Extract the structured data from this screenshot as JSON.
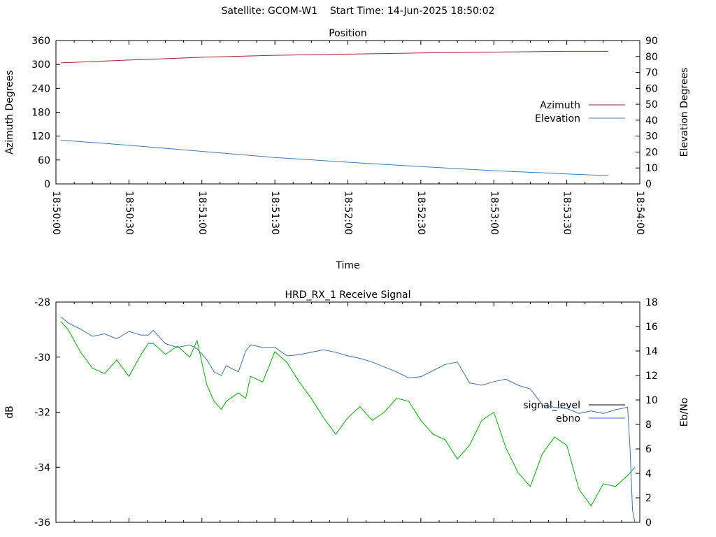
{
  "header": {
    "satellite": "Satellite: GCOM-W1",
    "start_time": "Start Time: 14-Jun-2025 18:50:02"
  },
  "colors": {
    "azimuth": "#a0242c",
    "elevation": "#3f7ab4",
    "signal_level_line": "#000000",
    "signal_level_trace": "#00b000",
    "ebno": "#3f6fb0"
  },
  "chart_data": [
    {
      "type": "line",
      "title": "Position",
      "xlabel": "Time",
      "ylabel": "Azimuth Degrees",
      "y2label": "Elevation Degrees",
      "xticks": [
        "18:50:00",
        "18:50:30",
        "18:51:00",
        "18:51:30",
        "18:52:00",
        "18:52:30",
        "18:53:00",
        "18:53:30",
        "18:54:00"
      ],
      "xlim_seconds": [
        0,
        240
      ],
      "ylim": [
        0,
        360
      ],
      "y2lim": [
        0,
        90
      ],
      "yticks": [
        0,
        60,
        120,
        180,
        240,
        300,
        360
      ],
      "y2ticks": [
        0,
        10,
        20,
        30,
        40,
        50,
        60,
        70,
        80,
        90
      ],
      "legend_position": "right",
      "series": [
        {
          "name": "Azimuth",
          "axis": "y",
          "t": [
            "18:50:02",
            "18:50:30",
            "18:51:00",
            "18:51:30",
            "18:52:00",
            "18:52:30",
            "18:53:00",
            "18:53:30",
            "18:53:47"
          ],
          "values": [
            304,
            311,
            318,
            323,
            326,
            329,
            331,
            333,
            333
          ]
        },
        {
          "name": "Elevation",
          "axis": "y2",
          "t": [
            "18:50:02",
            "18:50:30",
            "18:51:00",
            "18:51:30",
            "18:52:00",
            "18:52:30",
            "18:53:00",
            "18:53:30",
            "18:53:47"
          ],
          "values": [
            27.5,
            24.3,
            20.4,
            16.6,
            13.6,
            10.9,
            8.3,
            6.3,
            5.2
          ]
        }
      ]
    },
    {
      "type": "line",
      "title": "HRD_RX_1 Receive Signal",
      "ylabel": "dB",
      "y2label": "Eb/No",
      "ylim": [
        -36,
        -28
      ],
      "y2lim": [
        0,
        18
      ],
      "yticks": [
        -28,
        -30,
        -32,
        -34,
        -36
      ],
      "y2ticks": [
        0,
        2,
        4,
        6,
        8,
        10,
        12,
        14,
        16,
        18
      ],
      "xlim_seconds": [
        0,
        240
      ],
      "legend_position": "right",
      "series": [
        {
          "name": "signal_level",
          "axis": "y",
          "t_seconds": [
            2,
            5,
            10,
            15,
            20,
            25,
            30,
            35,
            38,
            40,
            45,
            50,
            55,
            58,
            62,
            65,
            68,
            70,
            75,
            78,
            80,
            85,
            90,
            95,
            100,
            105,
            110,
            115,
            120,
            125,
            130,
            135,
            140,
            145,
            150,
            155,
            160,
            165,
            170,
            175,
            180,
            185,
            190,
            195,
            200,
            205,
            210,
            215,
            220,
            225,
            230,
            235,
            238
          ],
          "values": [
            -28.7,
            -29.0,
            -29.8,
            -30.4,
            -30.6,
            -30.1,
            -30.7,
            -29.9,
            -29.5,
            -29.5,
            -29.9,
            -29.6,
            -30.0,
            -29.4,
            -31.0,
            -31.6,
            -31.9,
            -31.6,
            -31.3,
            -31.5,
            -30.7,
            -30.9,
            -29.8,
            -30.2,
            -30.9,
            -31.5,
            -32.2,
            -32.8,
            -32.2,
            -31.8,
            -32.3,
            -32.0,
            -31.5,
            -31.6,
            -32.3,
            -32.8,
            -33.0,
            -33.7,
            -33.2,
            -32.3,
            -32.0,
            -33.3,
            -34.2,
            -34.7,
            -33.5,
            -32.9,
            -33.2,
            -34.8,
            -35.4,
            -34.6,
            -34.7,
            -34.3,
            -34.0
          ]
        },
        {
          "name": "ebno",
          "axis": "y2",
          "t_seconds": [
            2,
            5,
            10,
            15,
            20,
            25,
            30,
            35,
            38,
            40,
            45,
            50,
            55,
            58,
            62,
            65,
            68,
            70,
            75,
            78,
            80,
            85,
            90,
            95,
            100,
            105,
            110,
            115,
            120,
            125,
            130,
            135,
            140,
            145,
            150,
            155,
            160,
            165,
            170,
            175,
            180,
            185,
            190,
            195,
            200,
            205,
            210,
            215,
            220,
            225,
            230,
            235,
            236,
            237,
            238
          ],
          "values": [
            16.8,
            16.3,
            15.8,
            15.2,
            15.4,
            15.0,
            15.6,
            15.3,
            15.3,
            15.7,
            14.6,
            14.3,
            14.5,
            14.2,
            13.3,
            12.3,
            12.0,
            12.8,
            12.3,
            14.0,
            14.5,
            14.3,
            14.3,
            13.6,
            13.7,
            13.9,
            14.1,
            13.9,
            13.6,
            13.4,
            13.1,
            12.7,
            12.3,
            11.8,
            11.9,
            12.4,
            12.9,
            13.1,
            11.4,
            11.2,
            11.5,
            11.7,
            11.2,
            10.9,
            9.6,
            9.4,
            9.3,
            8.9,
            9.1,
            8.9,
            9.2,
            9.4,
            6.0,
            1.0,
            0.0
          ]
        }
      ]
    }
  ]
}
